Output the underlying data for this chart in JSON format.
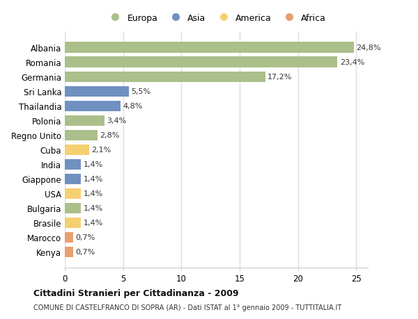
{
  "categories": [
    "Kenya",
    "Marocco",
    "Brasile",
    "Bulgaria",
    "USA",
    "Giappone",
    "India",
    "Cuba",
    "Regno Unito",
    "Polonia",
    "Thailandia",
    "Sri Lanka",
    "Germania",
    "Romania",
    "Albania"
  ],
  "values": [
    0.7,
    0.7,
    1.4,
    1.4,
    1.4,
    1.4,
    1.4,
    2.1,
    2.8,
    3.4,
    4.8,
    5.5,
    17.2,
    23.4,
    24.8
  ],
  "continents": [
    "Africa",
    "Africa",
    "America",
    "Europa",
    "America",
    "Asia",
    "Asia",
    "America",
    "Europa",
    "Europa",
    "Asia",
    "Asia",
    "Europa",
    "Europa",
    "Europa"
  ],
  "colors": {
    "Europa": "#aabf8a",
    "Asia": "#7090c0",
    "America": "#f5d070",
    "Africa": "#e8a070"
  },
  "labels": [
    "0,7%",
    "0,7%",
    "1,4%",
    "1,4%",
    "1,4%",
    "1,4%",
    "1,4%",
    "2,1%",
    "2,8%",
    "3,4%",
    "4,8%",
    "5,5%",
    "17,2%",
    "23,4%",
    "24,8%"
  ],
  "title": "Cittadini Stranieri per Cittadinanza - 2009",
  "subtitle": "COMUNE DI CASTELFRANCO DI SOPRA (AR) - Dati ISTAT al 1° gennaio 2009 - TUTTITALIA.IT",
  "xlim": [
    0,
    26
  ],
  "xticks": [
    0,
    5,
    10,
    15,
    20,
    25
  ],
  "background_color": "#ffffff",
  "grid_color": "#dddddd",
  "legend_items": [
    "Europa",
    "Asia",
    "America",
    "Africa"
  ]
}
